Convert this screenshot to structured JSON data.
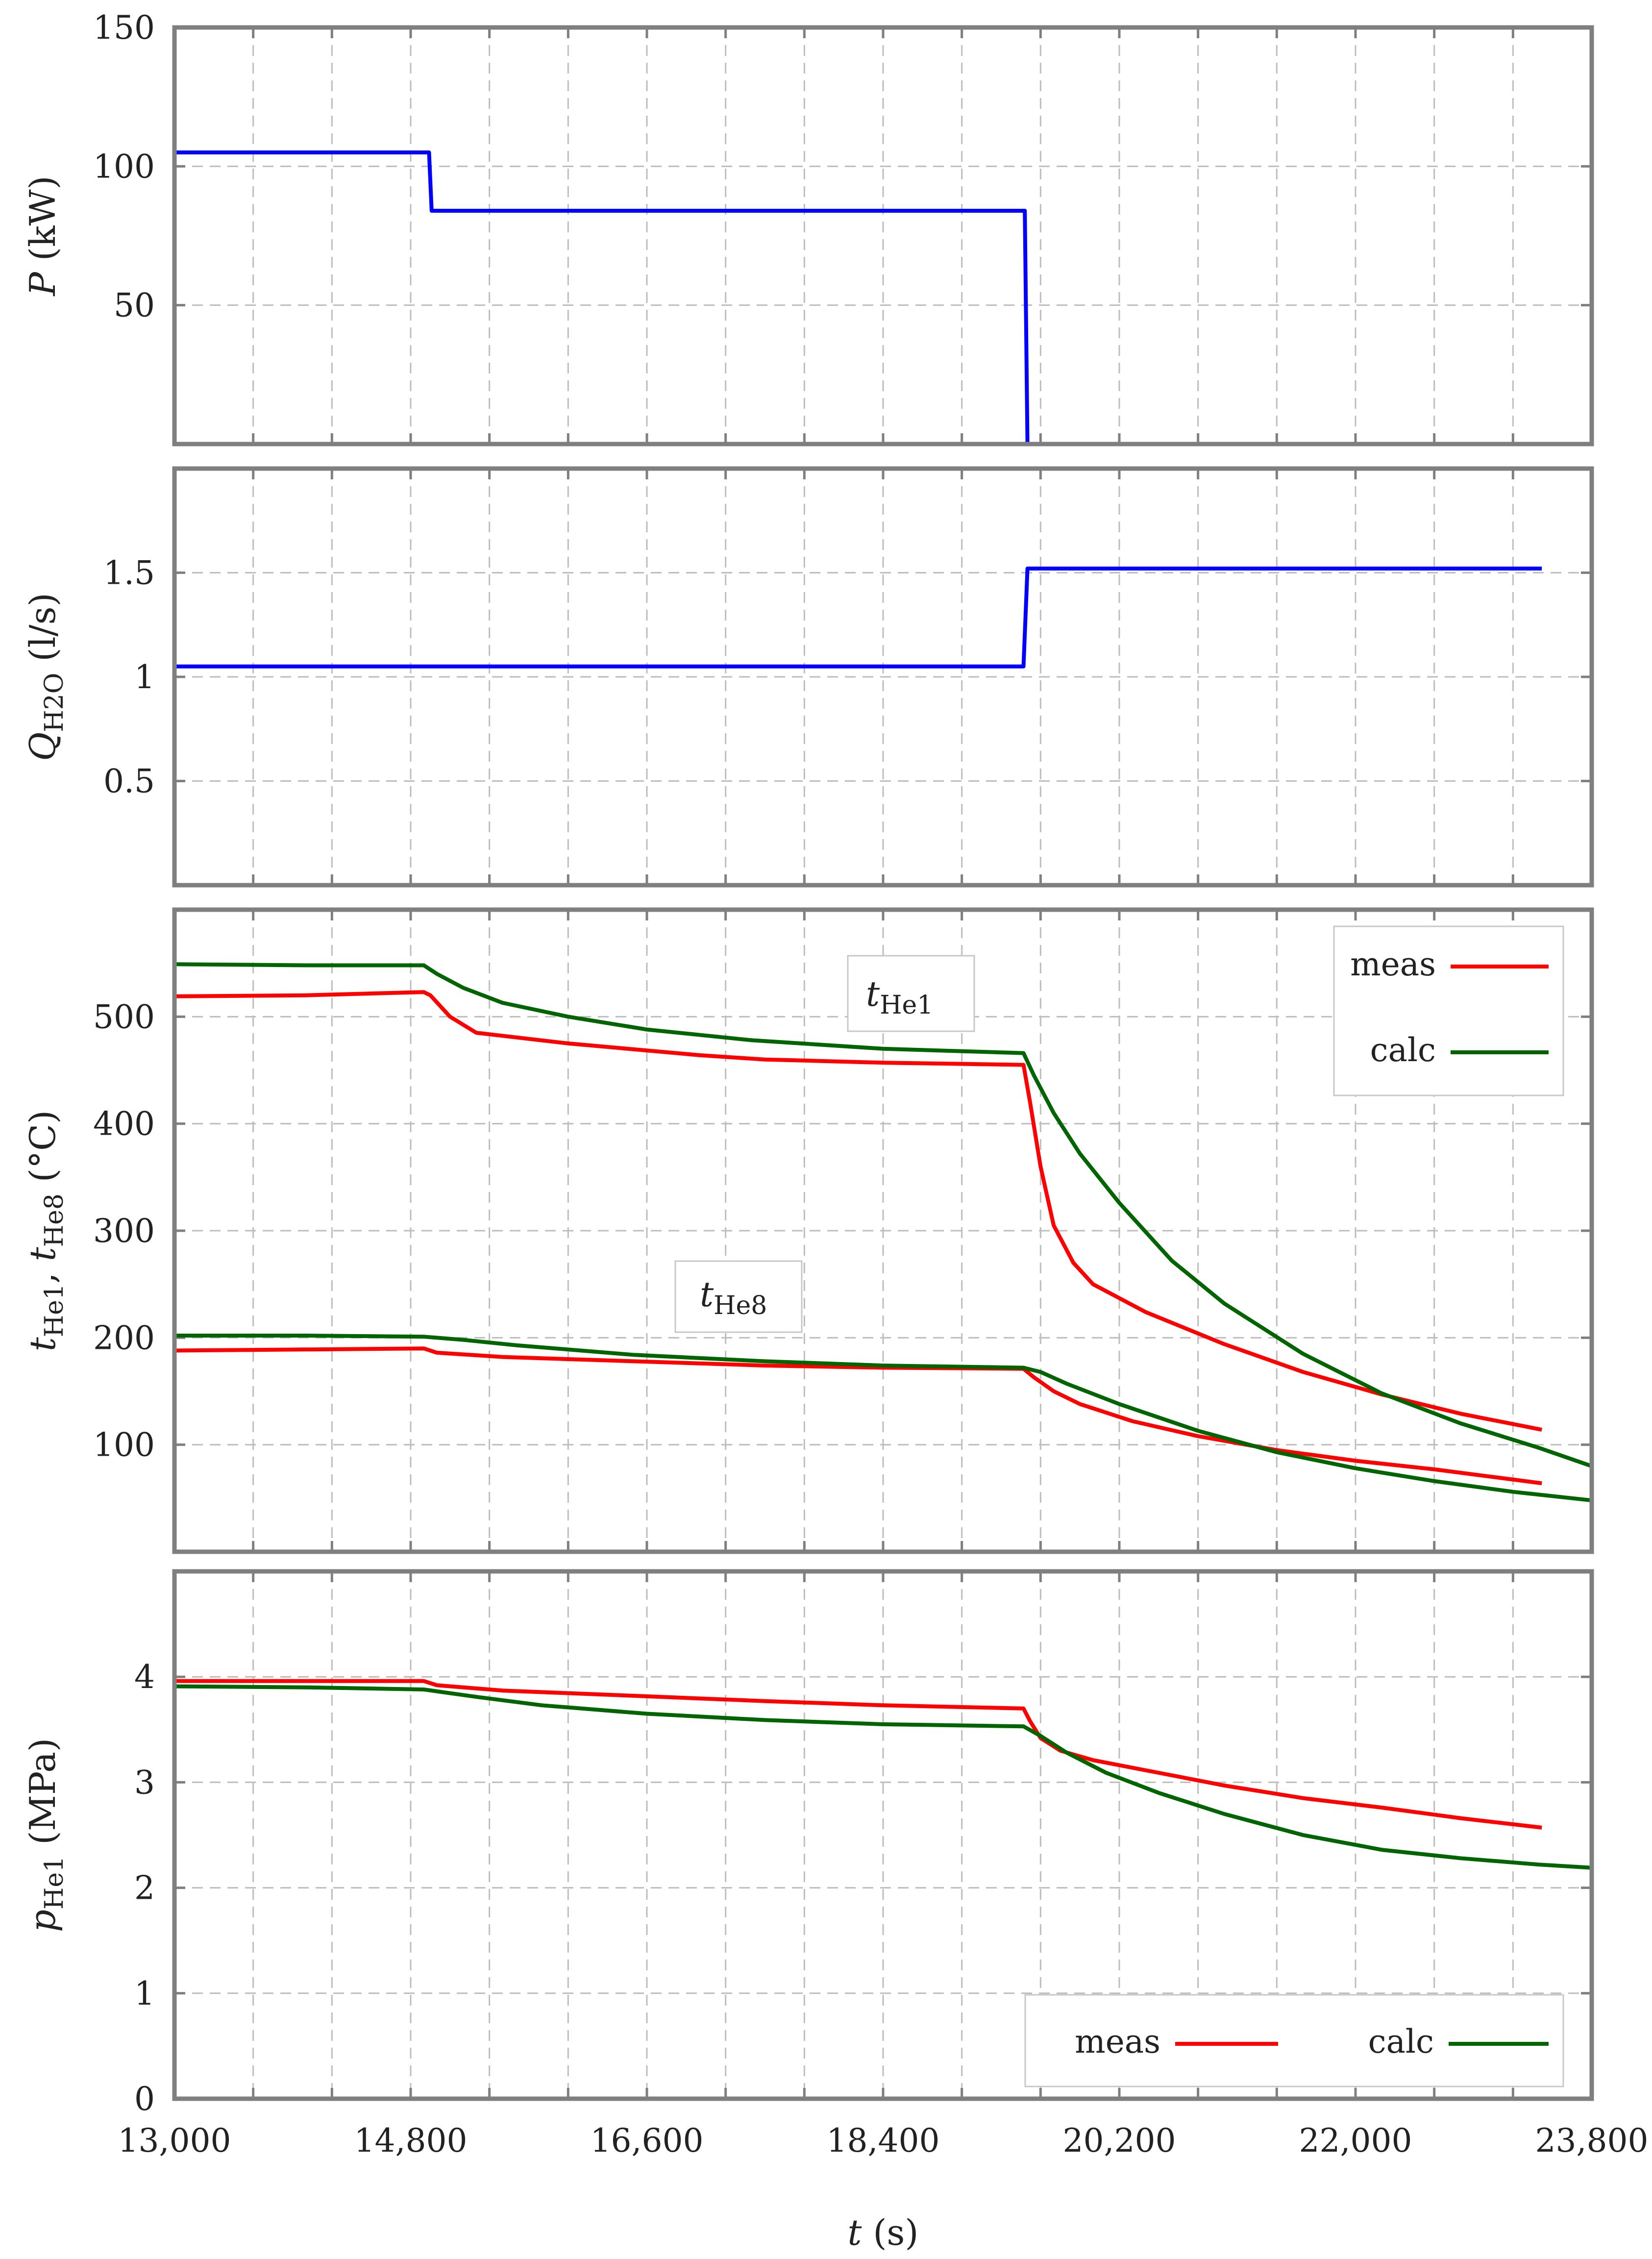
{
  "chart_data": [
    {
      "type": "line",
      "ylabel": "P (kW)",
      "xlim": [
        13000,
        23800
      ],
      "ylim": [
        0,
        150
      ],
      "yticks": [
        50,
        100,
        150
      ],
      "ytick_labels": [
        "50",
        "100",
        "150"
      ],
      "grid": true,
      "colors": {
        "power": "#0000ff"
      },
      "series": [
        {
          "name": "power",
          "x": [
            13000,
            14940,
            14960,
            19480,
            19500
          ],
          "y": [
            105,
            105,
            84,
            84,
            0
          ]
        }
      ]
    },
    {
      "type": "line",
      "ylabel": "QH2O (l/s)",
      "xlim": [
        13000,
        23800
      ],
      "ylim": [
        0,
        2
      ],
      "yticks": [
        0.5,
        1,
        1.5
      ],
      "ytick_labels": [
        "0.5",
        "1",
        "1.5"
      ],
      "grid": true,
      "colors": {
        "flow": "#0000ff"
      },
      "series": [
        {
          "name": "flow",
          "x": [
            13000,
            19470,
            19500,
            23420
          ],
          "y": [
            1.05,
            1.05,
            1.52,
            1.52
          ]
        }
      ]
    },
    {
      "type": "line",
      "ylabel": "tHe1, tHe8 (°C)",
      "xlim": [
        13000,
        23800
      ],
      "ylim": [
        0,
        600
      ],
      "yticks": [
        100,
        200,
        300,
        400,
        500
      ],
      "ytick_labels": [
        "100",
        "200",
        "300",
        "400",
        "500"
      ],
      "grid": true,
      "legend": {
        "position": "top-right",
        "entries": [
          "meas",
          "calc"
        ]
      },
      "annotations": [
        {
          "label": "t",
          "sub": "He1",
          "x": 18000,
          "y": 522
        },
        {
          "label": "t",
          "sub": "He8",
          "x": 16700,
          "y": 256
        }
      ],
      "colors": {
        "meas": "#ff0000",
        "calc": "#006400"
      },
      "series": [
        {
          "name": "meas",
          "curve": "tHe1",
          "x": [
            13000,
            14000,
            14900,
            14950,
            15100,
            15300,
            16000,
            17000,
            17500,
            17800,
            18400,
            19470,
            19520,
            19600,
            19700,
            19850,
            20000,
            20400,
            21000,
            21600,
            22200,
            22800,
            23420
          ],
          "y": [
            519,
            520,
            523,
            520,
            500,
            485,
            475,
            464,
            460,
            459,
            457,
            455,
            420,
            360,
            305,
            270,
            250,
            224,
            194,
            168,
            147,
            129,
            114
          ]
        },
        {
          "name": "calc",
          "curve": "tHe1",
          "x": [
            13000,
            14000,
            14900,
            15000,
            15200,
            15500,
            16000,
            16600,
            17400,
            18400,
            19470,
            19550,
            19700,
            19900,
            20200,
            20600,
            21000,
            21600,
            22200,
            22800,
            23400,
            23800
          ],
          "y": [
            549,
            548,
            548,
            540,
            527,
            513,
            500,
            488,
            478,
            470,
            466,
            445,
            410,
            372,
            326,
            272,
            232,
            185,
            148,
            120,
            97,
            80
          ]
        },
        {
          "name": "meas",
          "curve": "tHe8",
          "x": [
            13000,
            14000,
            14900,
            15000,
            15500,
            16500,
            17500,
            18400,
            19470,
            19550,
            19700,
            19900,
            20300,
            20800,
            21400,
            22000,
            22600,
            23420
          ],
          "y": [
            188,
            189,
            190,
            186,
            182,
            178,
            174,
            172,
            171,
            163,
            150,
            138,
            122,
            108,
            95,
            85,
            77,
            64
          ]
        },
        {
          "name": "calc",
          "curve": "tHe8",
          "x": [
            13000,
            14000,
            14900,
            15200,
            15600,
            16500,
            17500,
            18400,
            19470,
            19600,
            19800,
            20200,
            20800,
            21400,
            22000,
            22600,
            23200,
            23800
          ],
          "y": [
            202,
            202,
            201,
            198,
            193,
            184,
            178,
            174,
            172,
            168,
            157,
            138,
            113,
            93,
            78,
            66,
            56,
            48
          ]
        }
      ]
    },
    {
      "type": "line",
      "ylabel": "pHe1 (MPa)",
      "xlabel": "t (s)",
      "xlim": [
        13000,
        23800
      ],
      "ylim": [
        0,
        5
      ],
      "yticks": [
        0,
        1,
        2,
        3,
        4
      ],
      "ytick_labels": [
        "0",
        "1",
        "2",
        "3",
        "4"
      ],
      "xticks": [
        13000,
        14800,
        16600,
        18400,
        20200,
        22000,
        23800
      ],
      "xtick_labels": [
        "13,000",
        "14,800",
        "16,600",
        "18,400",
        "20,200",
        "22,000",
        "23,800"
      ],
      "grid": true,
      "legend": {
        "position": "bottom-right",
        "entries": [
          "meas",
          "calc"
        ]
      },
      "colors": {
        "meas": "#ff0000",
        "calc": "#006400"
      },
      "series": [
        {
          "name": "meas",
          "x": [
            13000,
            14000,
            14900,
            15000,
            15500,
            16500,
            17500,
            18400,
            19470,
            19520,
            19600,
            19750,
            20000,
            20500,
            21000,
            21600,
            22200,
            22800,
            23420
          ],
          "y": [
            3.96,
            3.96,
            3.96,
            3.92,
            3.87,
            3.82,
            3.77,
            3.73,
            3.7,
            3.58,
            3.42,
            3.3,
            3.21,
            3.09,
            2.97,
            2.85,
            2.76,
            2.66,
            2.57
          ]
        },
        {
          "name": "calc",
          "x": [
            13000,
            14000,
            14900,
            15300,
            15800,
            16600,
            17500,
            18400,
            19470,
            19600,
            19800,
            20100,
            20500,
            21000,
            21600,
            22200,
            22800,
            23400,
            23800
          ],
          "y": [
            3.91,
            3.9,
            3.88,
            3.81,
            3.73,
            3.65,
            3.59,
            3.55,
            3.53,
            3.44,
            3.28,
            3.09,
            2.9,
            2.7,
            2.5,
            2.36,
            2.28,
            2.22,
            2.19
          ]
        }
      ]
    }
  ]
}
